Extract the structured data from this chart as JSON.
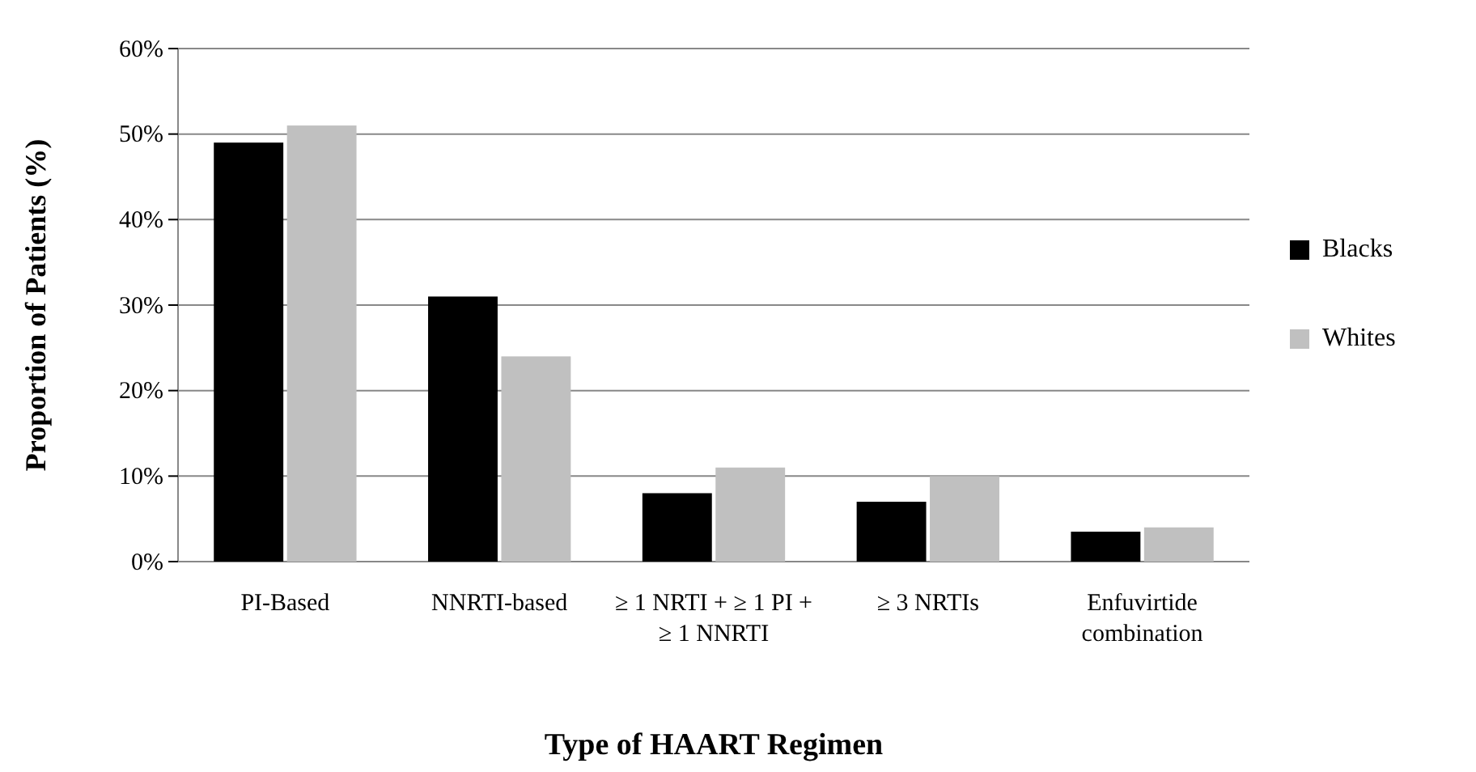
{
  "chart_data": {
    "type": "bar",
    "xlabel": "Type of HAART Regimen",
    "ylabel": "Proportion of Patients (%)",
    "categories": [
      "PI-Based",
      "NNRTI-based",
      "≥ 1 NRTI + ≥ 1 PI + ≥ 1 NNRTI",
      "≥ 3 NRTIs",
      "Enfuvirtide combination"
    ],
    "series": [
      {
        "name": "Blacks",
        "color": "#000000",
        "values": [
          49,
          31,
          8,
          7,
          3.5
        ]
      },
      {
        "name": "Whites",
        "color": "#c0c0c0",
        "values": [
          51,
          24,
          11,
          10,
          4
        ]
      }
    ],
    "ylim": [
      0,
      60
    ],
    "yticks": [
      {
        "value": 0,
        "label": "0%"
      },
      {
        "value": 10,
        "label": "10%"
      },
      {
        "value": 20,
        "label": "20%"
      },
      {
        "value": 30,
        "label": "30%"
      },
      {
        "value": 40,
        "label": "40%"
      },
      {
        "value": 50,
        "label": "50%"
      },
      {
        "value": 60,
        "label": "60%"
      }
    ],
    "grid": "y",
    "legend": "right"
  }
}
